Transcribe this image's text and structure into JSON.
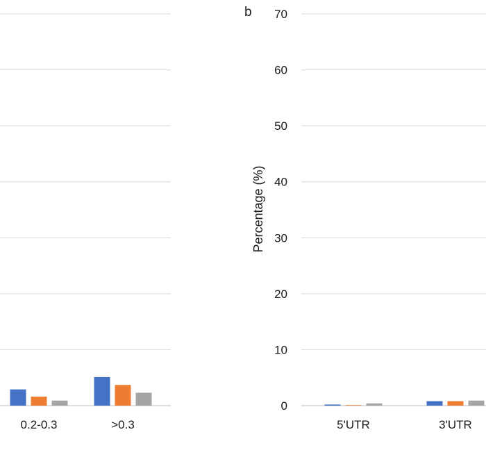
{
  "chart_data": [
    {
      "type": "bar",
      "categories": [
        "0.2-0.3",
        ">0.3"
      ],
      "series": [
        {
          "color": "#4472C4",
          "values": [
            2.9,
            5.1
          ]
        },
        {
          "color": "#ED7D31",
          "values": [
            1.6,
            3.7
          ]
        },
        {
          "color": "#A5A5A5",
          "values": [
            0.9,
            2.3
          ]
        }
      ],
      "ylim": [
        0,
        70
      ],
      "grid": true,
      "ylabel": "",
      "xlabel": ""
    },
    {
      "type": "bar",
      "panel_label": "b",
      "categories": [
        "5'UTR",
        "3'UTR"
      ],
      "series": [
        {
          "color": "#4472C4",
          "values": [
            0.2,
            0.8
          ]
        },
        {
          "color": "#ED7D31",
          "values": [
            0.1,
            0.8
          ]
        },
        {
          "color": "#A5A5A5",
          "values": [
            0.4,
            0.9
          ]
        }
      ],
      "yticks": [
        0,
        10,
        20,
        30,
        40,
        50,
        60,
        70
      ],
      "ylim": [
        0,
        70
      ],
      "ylabel": "Percentage (%)",
      "xlabel": "",
      "grid": true
    }
  ]
}
